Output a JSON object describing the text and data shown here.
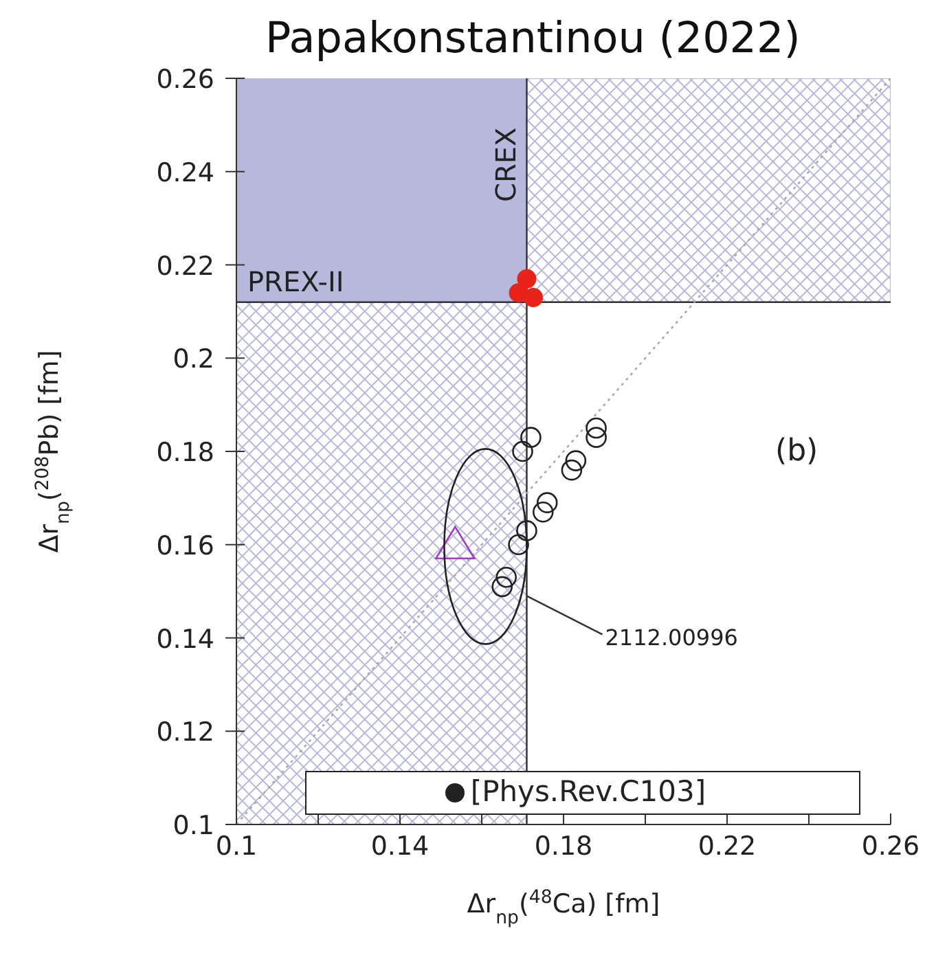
{
  "chart_data": {
    "type": "scatter",
    "title": "Papakonstantinou (2022)",
    "xlabel": "Δr$_{np}$($^{48}$Ca) [fm]",
    "ylabel": "Δr$_{np}$($^{208}$Pb) [fm]",
    "xlim": [
      0.1,
      0.26
    ],
    "xticks": [
      0.1,
      {
        "value": 0.12,
        "label": null
      },
      0.14,
      {
        "value": 0.16,
        "label": null
      },
      0.18,
      {
        "value": 0.2,
        "label": null
      },
      0.22,
      {
        "value": 0.24,
        "label": null
      },
      0.26
    ],
    "ylim": [
      0.1,
      0.26
    ],
    "yticks": [
      0.1,
      0.12,
      0.14,
      0.16,
      0.18,
      0.2,
      0.22,
      0.24,
      0.26
    ],
    "grid": false,
    "legend": "bottom",
    "bands": [
      {
        "axis": "x",
        "from": 0.1,
        "to": 0.171,
        "label": "CREX",
        "color": "#b8b8dc"
      },
      {
        "axis": "y",
        "from": 0.212,
        "to": 0.26,
        "label": "PREX-II",
        "color": "#b8b8dc"
      }
    ],
    "ref_lines": [
      {
        "axis": "x",
        "value": 0.171,
        "color": "#333333"
      },
      {
        "axis": "y",
        "value": 0.212,
        "color": "#333333"
      }
    ],
    "annotations": [
      "(b)",
      {
        "text": "2112.00996",
        "x": 0.171,
        "y": 0.149
      }
    ],
    "series": [
      {
        "type": "line",
        "color": "#aaaaaa",
        "line_style": "dotted",
        "marker": "none",
        "x": [
          0.1,
          0.26
        ],
        "values": [
          0.1,
          0.26
        ]
      },
      {
        "name": "[Phys.Rev.C103]",
        "color": "#222222",
        "marker": "circle",
        "x": [
          0.172,
          0.17,
          0.188,
          0.188,
          0.183,
          0.182,
          0.176,
          0.175,
          0.171,
          0.169,
          0.166,
          0.165
        ],
        "values": [
          0.183,
          0.18,
          0.185,
          0.183,
          0.178,
          0.176,
          0.169,
          0.167,
          0.163,
          0.16,
          0.153,
          0.151
        ]
      },
      {
        "color": "#a040c0",
        "marker": "triangle",
        "x": [
          0.1535
        ],
        "values": [
          0.16
        ]
      },
      {
        "color": "#e8231a",
        "marker": "circle",
        "x": [
          0.171,
          0.169,
          0.1726
        ],
        "values": [
          0.217,
          0.214,
          0.213
        ]
      }
    ]
  }
}
